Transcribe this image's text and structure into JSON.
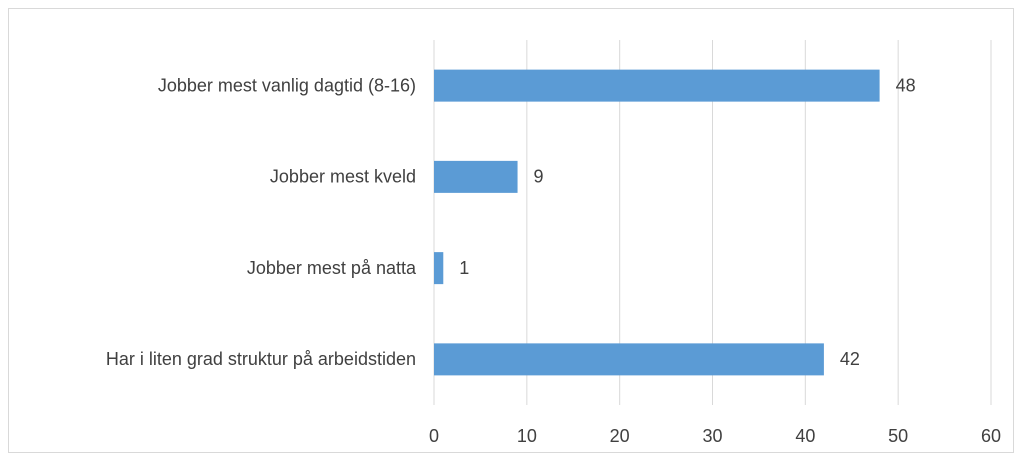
{
  "chart_data": {
    "type": "bar",
    "orientation": "horizontal",
    "categories": [
      "Jobber mest vanlig dagtid (8-16)",
      "Jobber mest kveld",
      "Jobber mest på natta",
      "Har i liten grad struktur på arbeidstiden"
    ],
    "values": [
      48,
      9,
      1,
      42
    ],
    "color": "#5b9bd5",
    "xlim": [
      0,
      60
    ],
    "xticks": [
      0,
      10,
      20,
      30,
      40,
      50,
      60
    ],
    "grid": true
  }
}
